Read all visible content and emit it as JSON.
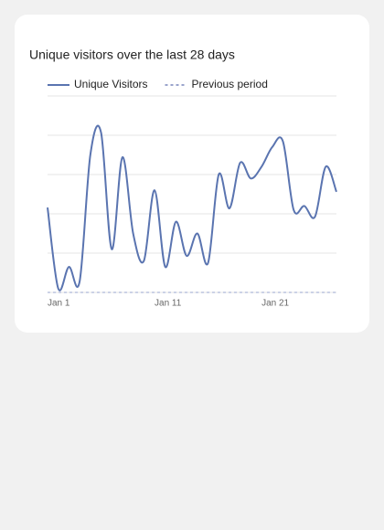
{
  "chart_data": {
    "type": "line",
    "title": "Unique visitors over the last 28 days",
    "categories": [
      "Jan 1",
      null,
      null,
      null,
      null,
      null,
      null,
      null,
      null,
      null,
      "Jan 11",
      null,
      null,
      null,
      null,
      null,
      null,
      null,
      null,
      null,
      "Jan 21",
      null,
      null,
      null,
      null,
      null,
      null,
      null
    ],
    "series": [
      {
        "name": "Unique Visitors",
        "color": "#5a74b0",
        "dashed": false,
        "values": [
          2.16,
          0.1,
          0.65,
          0.28,
          3.5,
          4.07,
          1.1,
          3.44,
          1.5,
          0.8,
          2.6,
          0.65,
          1.8,
          0.93,
          1.5,
          0.75,
          3.0,
          2.14,
          3.3,
          2.9,
          3.2,
          3.7,
          3.84,
          2.1,
          2.2,
          1.93,
          3.2,
          2.56
        ]
      },
      {
        "name": "Previous period",
        "color": "#9aa4cc",
        "dashed": true,
        "values": [
          0,
          0,
          0,
          0,
          0,
          0,
          0,
          0,
          0,
          0,
          0,
          0,
          0,
          0,
          0,
          0,
          0,
          0,
          0,
          0,
          0,
          0,
          0,
          0,
          0,
          0,
          0,
          0
        ]
      }
    ],
    "ylim": [
      0,
      5
    ],
    "yticks": [
      0,
      1,
      2,
      3,
      4,
      5
    ],
    "grid": true
  }
}
